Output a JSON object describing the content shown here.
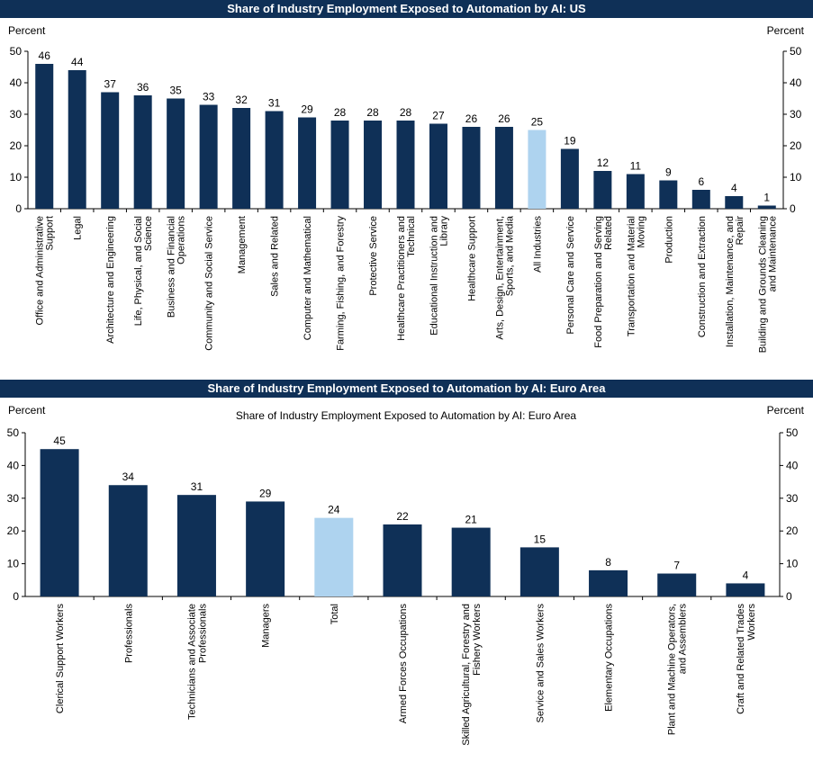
{
  "chart_data": [
    {
      "type": "bar",
      "title": "Share of Industry Employment Exposed to Automation by AI: US",
      "ylabel_left": "Percent",
      "ylabel_right": "Percent",
      "ylim": [
        0,
        50
      ],
      "yticks": [
        0,
        10,
        20,
        30,
        40,
        50
      ],
      "grid": false,
      "bar_color": "#0f3057",
      "highlight_color": "#aed3ef",
      "highlight_category": "All Industries",
      "categories": [
        "Office and Administrative Support",
        "Legal",
        "Architecture and Engineering",
        "Life, Physical, and Social Science",
        "Business and Financial Operations",
        "Community and Social Service",
        "Management",
        "Sales and Related",
        "Computer and Mathematical",
        "Farming, Fishing, and Forestry",
        "Protective Service",
        "Healthcare Practitioners and Technical",
        "Educational Instruction and Library",
        "Healthcare Support",
        "Arts, Design, Entertainment, Sports, and Media",
        "All Industries",
        "Personal Care and Service",
        "Food Preparation and Serving Related",
        "Transportation and Material Moving",
        "Production",
        "Construction and Extraction",
        "Installation, Maintenance, and Repair",
        "Building and Grounds Cleaning and Maintenance"
      ],
      "label_lines": [
        [
          "Office and Administrative",
          "Support"
        ],
        [
          "Legal"
        ],
        [
          "Architecture and Engineering"
        ],
        [
          "Life, Physical, and Social",
          "Science"
        ],
        [
          "Business and Financial",
          "Operations"
        ],
        [
          "Community and Social Service"
        ],
        [
          "Management"
        ],
        [
          "Sales and Related"
        ],
        [
          "Computer and Mathematical"
        ],
        [
          "Farming, Fishing, and Forestry"
        ],
        [
          "Protective Service"
        ],
        [
          "Healthcare Practitioners and",
          "Technical"
        ],
        [
          "Educational Instruction and",
          "Library"
        ],
        [
          "Healthcare Support"
        ],
        [
          "Arts, Design, Entertainment,",
          "Sports, and Media"
        ],
        [
          "All Industries"
        ],
        [
          "Personal Care and Service"
        ],
        [
          "Food Preparation and Serving",
          "Related"
        ],
        [
          "Transportation and Material",
          "Moving"
        ],
        [
          "Production"
        ],
        [
          "Construction and Extraction"
        ],
        [
          "Installation, Maintenance, and",
          "Repair"
        ],
        [
          "Building and Grounds Cleaning",
          "and Maintenance"
        ]
      ],
      "values": [
        46,
        44,
        37,
        36,
        35,
        33,
        32,
        31,
        29,
        28,
        28,
        28,
        27,
        26,
        26,
        25,
        19,
        12,
        11,
        9,
        6,
        4,
        1
      ],
      "data_labels": [
        "46",
        "44",
        "37",
        "36",
        "35",
        "33",
        "32",
        "31",
        "29",
        "28",
        "28",
        "28",
        "27",
        "26",
        "26",
        "25",
        "19",
        "12",
        "11",
        "9",
        "6",
        "4",
        "1"
      ]
    },
    {
      "type": "bar",
      "title": "Share of Industry Employment Exposed to Automation by AI: Euro Area",
      "subtitle": "Share of Industry Employment Exposed to Automation by AI: Euro Area",
      "ylabel_left": "Percent",
      "ylabel_right": "Percent",
      "ylim": [
        0,
        50
      ],
      "yticks": [
        0,
        10,
        20,
        30,
        40,
        50
      ],
      "grid": false,
      "bar_color": "#0f3057",
      "highlight_color": "#aed3ef",
      "highlight_category": "Total",
      "categories": [
        "Clerical Support Workers",
        "Professionals",
        "Technicians and Associate Professionals",
        "Managers",
        "Total",
        "Armed Forces Occupations",
        "Skilled Agricultural, Forestry and Fishery Workers",
        "Service and Sales Workers",
        "Elementary Occupations",
        "Plant and Machine Operators, and Assemblers",
        "Craft and Related Trades Workers"
      ],
      "label_lines": [
        [
          "Clerical Support Workers"
        ],
        [
          "Professionals"
        ],
        [
          "Technicians and Associate",
          "Professionals"
        ],
        [
          "Managers"
        ],
        [
          "Total"
        ],
        [
          "Armed Forces Occupations"
        ],
        [
          "Skilled Agricultural, Forestry and",
          "Fishery Workers"
        ],
        [
          "Service and Sales Workers"
        ],
        [
          "Elementary Occupations"
        ],
        [
          "Plant and Machine Operators,",
          "and Assemblers"
        ],
        [
          "Craft and Related Trades",
          "Workers"
        ]
      ],
      "values": [
        45,
        34,
        31,
        29,
        24,
        22,
        21,
        15,
        8,
        7,
        4
      ],
      "data_labels": [
        "45",
        "34",
        "31",
        "29",
        "24",
        "22",
        "21",
        "15",
        "8",
        "7",
        "4"
      ]
    }
  ]
}
